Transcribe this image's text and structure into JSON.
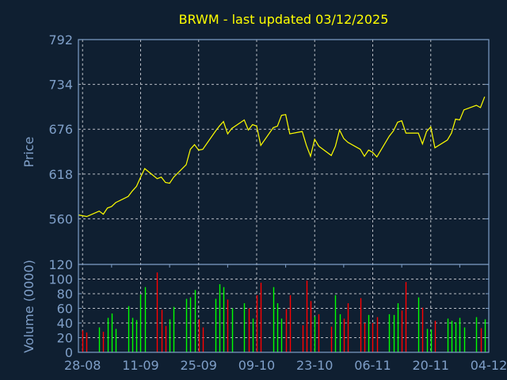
{
  "colors": {
    "background": "#0f1f31",
    "axis": "#7f9fc8",
    "grid": "#b8bcc4",
    "price_line": "#ffff00",
    "volume_up": "#00ff00",
    "volume_down": "#ff0000",
    "title": "#ffff00"
  },
  "chart_data": [
    {
      "type": "line",
      "title": "BRWM - last updated 03/12/2025",
      "ylabel": "Price",
      "xlabel": "",
      "ylim": [
        501,
        792
      ],
      "xlim": [
        "27-08",
        "04-12"
      ],
      "grid": true,
      "yticks": [
        792,
        734,
        676,
        618,
        560
      ],
      "xticks": [
        "28-08",
        "11-09",
        "25-09",
        "09-10",
        "23-10",
        "06-11",
        "20-11",
        "04-12"
      ],
      "series": [
        {
          "x": [
            "27-08",
            "28-08",
            "29-08",
            "01-09",
            "02-09",
            "03-09",
            "04-09",
            "05-09",
            "08-09",
            "09-09",
            "10-09",
            "11-09",
            "12-09",
            "15-09",
            "16-09",
            "17-09",
            "18-09",
            "19-09",
            "22-09",
            "23-09",
            "24-09",
            "25-09",
            "26-09",
            "29-09",
            "30-09",
            "01-10",
            "02-10",
            "03-10",
            "06-10",
            "07-10",
            "08-10",
            "09-10",
            "10-10",
            "13-10",
            "14-10",
            "15-10",
            "16-10",
            "17-10",
            "20-10",
            "21-10",
            "22-10",
            "23-10",
            "24-10",
            "27-10",
            "28-10",
            "29-10",
            "30-10",
            "31-10",
            "03-11",
            "04-11",
            "05-11",
            "06-11",
            "07-11",
            "10-11",
            "11-11",
            "12-11",
            "13-11",
            "14-11",
            "17-11",
            "18-11",
            "19-11",
            "20-11",
            "21-11",
            "24-11",
            "25-11",
            "26-11",
            "27-11",
            "28-11",
            "01-12",
            "02-12",
            "03-12"
          ],
          "values": [
            565,
            564,
            563,
            570,
            566,
            574,
            576,
            581,
            589,
            596,
            602,
            614,
            625,
            612,
            614,
            607,
            606,
            614,
            630,
            650,
            656,
            649,
            650,
            673,
            680,
            686,
            670,
            677,
            688,
            675,
            682,
            680,
            655,
            678,
            680,
            694,
            695,
            670,
            673,
            655,
            641,
            663,
            654,
            642,
            654,
            675,
            664,
            659,
            650,
            641,
            649,
            646,
            640,
            667,
            674,
            685,
            687,
            671,
            671,
            657,
            673,
            679,
            652,
            662,
            671,
            689,
            688,
            701,
            707,
            704,
            718
          ]
        }
      ]
    },
    {
      "type": "bar",
      "ylabel": "Volume (0000)",
      "ylim": [
        0,
        120
      ],
      "yticks": [
        0,
        20,
        40,
        60,
        80,
        100,
        120
      ],
      "grid": true,
      "bars": [
        {
          "x": "28-08",
          "value": 30,
          "dir": "down"
        },
        {
          "x": "29-08",
          "value": 27,
          "dir": "down"
        },
        {
          "x": "01-09",
          "value": 34,
          "dir": "up"
        },
        {
          "x": "02-09",
          "value": 28,
          "dir": "down"
        },
        {
          "x": "03-09",
          "value": 47,
          "dir": "up"
        },
        {
          "x": "04-09",
          "value": 53,
          "dir": "up"
        },
        {
          "x": "05-09",
          "value": 32,
          "dir": "up"
        },
        {
          "x": "08-09",
          "value": 63,
          "dir": "up"
        },
        {
          "x": "09-09",
          "value": 47,
          "dir": "up"
        },
        {
          "x": "10-09",
          "value": 44,
          "dir": "up"
        },
        {
          "x": "11-09",
          "value": 79,
          "dir": "up"
        },
        {
          "x": "12-09",
          "value": 89,
          "dir": "up"
        },
        {
          "x": "15-09",
          "value": 109,
          "dir": "down"
        },
        {
          "x": "16-09",
          "value": 58,
          "dir": "down"
        },
        {
          "x": "17-09",
          "value": 36,
          "dir": "down"
        },
        {
          "x": "18-09",
          "value": 45,
          "dir": "up"
        },
        {
          "x": "19-09",
          "value": 62,
          "dir": "up"
        },
        {
          "x": "22-09",
          "value": 73,
          "dir": "up"
        },
        {
          "x": "23-09",
          "value": 75,
          "dir": "up"
        },
        {
          "x": "24-09",
          "value": 85,
          "dir": "up"
        },
        {
          "x": "25-09",
          "value": 45,
          "dir": "down"
        },
        {
          "x": "26-09",
          "value": 34,
          "dir": "down"
        },
        {
          "x": "29-09",
          "value": 73,
          "dir": "up"
        },
        {
          "x": "30-09",
          "value": 93,
          "dir": "up"
        },
        {
          "x": "01-10",
          "value": 89,
          "dir": "up"
        },
        {
          "x": "02-10",
          "value": 72,
          "dir": "down"
        },
        {
          "x": "03-10",
          "value": 60,
          "dir": "up"
        },
        {
          "x": "06-10",
          "value": 67,
          "dir": "up"
        },
        {
          "x": "07-10",
          "value": 60,
          "dir": "down"
        },
        {
          "x": "08-10",
          "value": 46,
          "dir": "up"
        },
        {
          "x": "09-10",
          "value": 78,
          "dir": "down"
        },
        {
          "x": "10-10",
          "value": 95,
          "dir": "down"
        },
        {
          "x": "13-10",
          "value": 89,
          "dir": "up"
        },
        {
          "x": "14-10",
          "value": 67,
          "dir": "up"
        },
        {
          "x": "15-10",
          "value": 46,
          "dir": "up"
        },
        {
          "x": "16-10",
          "value": 59,
          "dir": "down"
        },
        {
          "x": "17-10",
          "value": 78,
          "dir": "down"
        },
        {
          "x": "20-10",
          "value": 37,
          "dir": "down"
        },
        {
          "x": "21-10",
          "value": 98,
          "dir": "down"
        },
        {
          "x": "22-10",
          "value": 70,
          "dir": "down"
        },
        {
          "x": "23-10",
          "value": 49,
          "dir": "up"
        },
        {
          "x": "24-10",
          "value": 52,
          "dir": "down"
        },
        {
          "x": "27-10",
          "value": 35,
          "dir": "down"
        },
        {
          "x": "28-10",
          "value": 78,
          "dir": "up"
        },
        {
          "x": "29-10",
          "value": 52,
          "dir": "up"
        },
        {
          "x": "30-10",
          "value": 46,
          "dir": "down"
        },
        {
          "x": "31-10",
          "value": 67,
          "dir": "down"
        },
        {
          "x": "03-11",
          "value": 74,
          "dir": "down"
        },
        {
          "x": "04-11",
          "value": 40,
          "dir": "down"
        },
        {
          "x": "05-11",
          "value": 51,
          "dir": "up"
        },
        {
          "x": "06-11",
          "value": 40,
          "dir": "down"
        },
        {
          "x": "07-11",
          "value": 48,
          "dir": "down"
        },
        {
          "x": "10-11",
          "value": 52,
          "dir": "up"
        },
        {
          "x": "11-11",
          "value": 51,
          "dir": "up"
        },
        {
          "x": "12-11",
          "value": 67,
          "dir": "up"
        },
        {
          "x": "13-11",
          "value": 57,
          "dir": "down"
        },
        {
          "x": "14-11",
          "value": 96,
          "dir": "down"
        },
        {
          "x": "17-11",
          "value": 75,
          "dir": "up"
        },
        {
          "x": "18-11",
          "value": 61,
          "dir": "down"
        },
        {
          "x": "19-11",
          "value": 32,
          "dir": "up"
        },
        {
          "x": "20-11",
          "value": 31,
          "dir": "up"
        },
        {
          "x": "21-11",
          "value": 43,
          "dir": "down"
        },
        {
          "x": "24-11",
          "value": 46,
          "dir": "up"
        },
        {
          "x": "25-11",
          "value": 43,
          "dir": "up"
        },
        {
          "x": "26-11",
          "value": 41,
          "dir": "up"
        },
        {
          "x": "27-11",
          "value": 47,
          "dir": "up"
        },
        {
          "x": "28-11",
          "value": 34,
          "dir": "up"
        },
        {
          "x": "01-12",
          "value": 48,
          "dir": "up"
        },
        {
          "x": "02-12",
          "value": 33,
          "dir": "down"
        },
        {
          "x": "03-12",
          "value": 45,
          "dir": "up"
        }
      ]
    }
  ]
}
